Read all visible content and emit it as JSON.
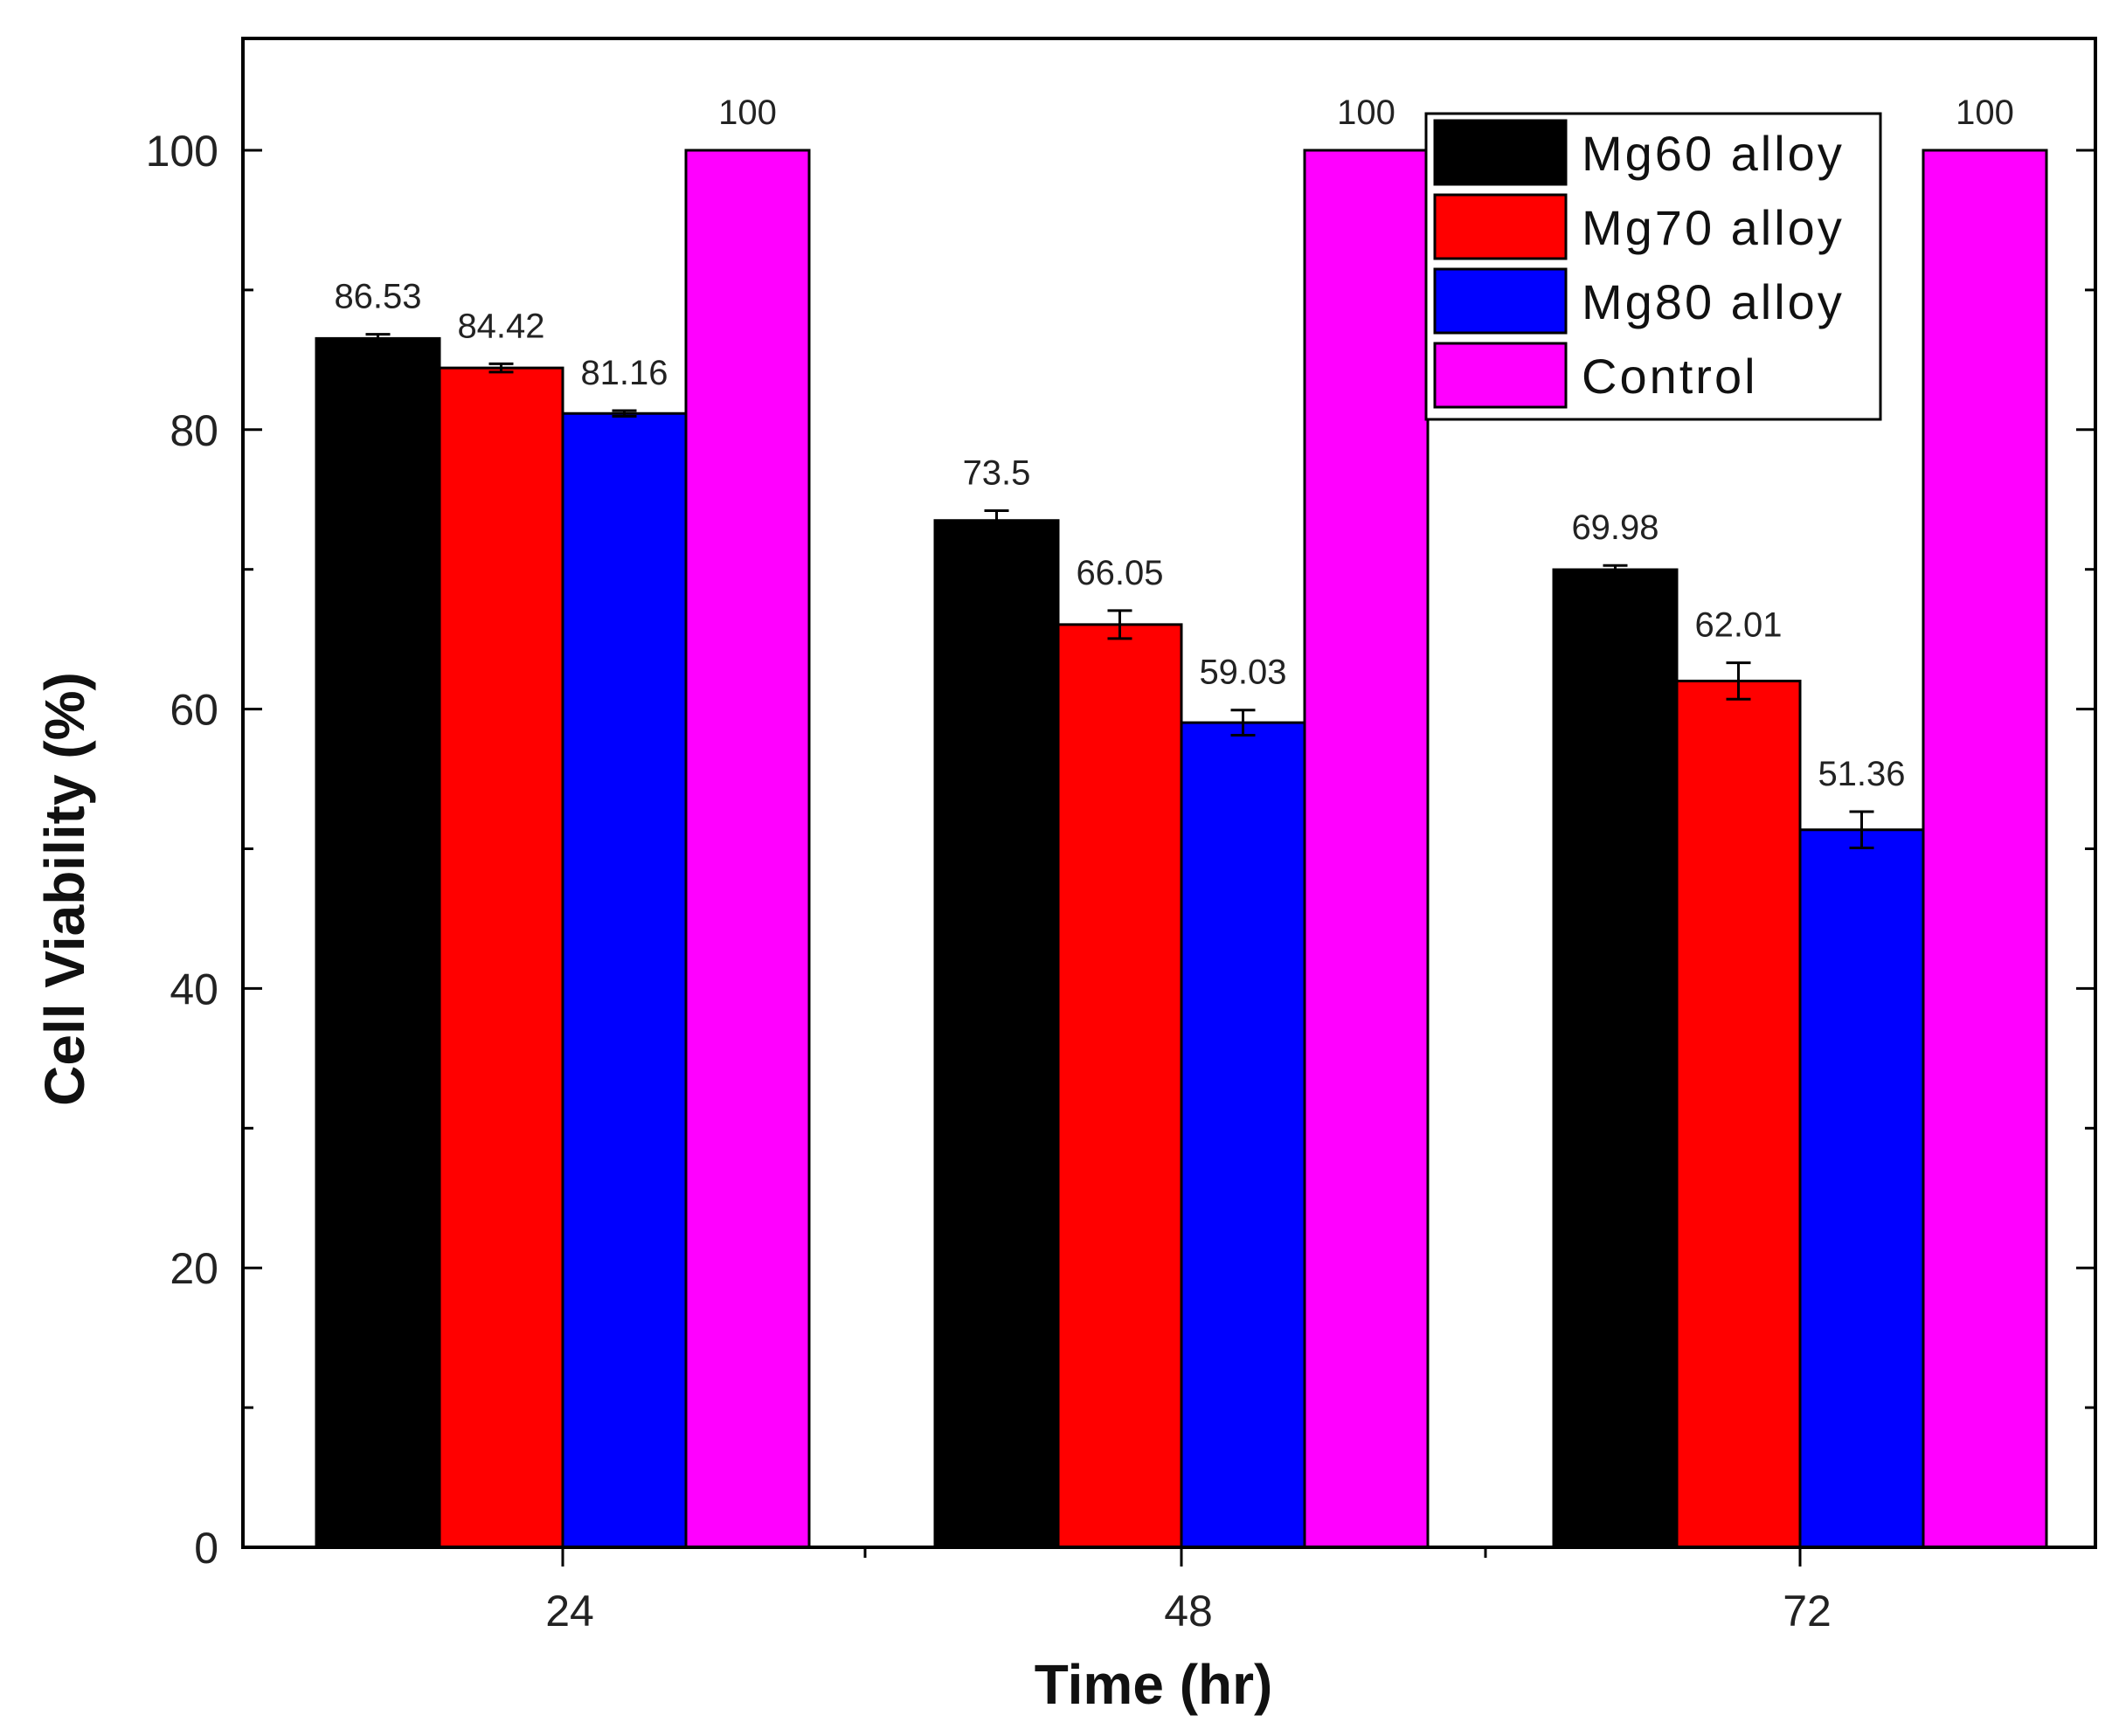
{
  "chart_data": {
    "type": "bar",
    "categories": [
      "24",
      "48",
      "72"
    ],
    "series": [
      {
        "name": "Mg60 alloy",
        "color": "#000000",
        "values": [
          86.53,
          73.5,
          69.98
        ],
        "errors": [
          0.3,
          0.7,
          0.3
        ]
      },
      {
        "name": "Mg70 alloy",
        "color": "#ff0000",
        "values": [
          84.42,
          66.05,
          62.01
        ],
        "errors": [
          0.3,
          1.0,
          1.3
        ]
      },
      {
        "name": "Mg80 alloy",
        "color": "#0000ff",
        "values": [
          81.16,
          59.03,
          51.36
        ],
        "errors": [
          0.2,
          0.9,
          1.3
        ]
      },
      {
        "name": "Control",
        "color": "#ff00ff",
        "values": [
          100,
          100,
          100
        ],
        "errors": [
          0,
          0,
          0
        ]
      }
    ],
    "value_labels": [
      [
        "86.53",
        "73.5",
        "69.98"
      ],
      [
        "84.42",
        "66.05",
        "62.01"
      ],
      [
        "81.16",
        "59.03",
        "51.36"
      ],
      [
        "100",
        "100",
        "100"
      ]
    ],
    "xlabel": "Time (hr)",
    "ylabel": "Cell Viability (%)",
    "ylim": [
      0,
      108
    ],
    "yticks": [
      0,
      20,
      40,
      60,
      80,
      100
    ],
    "yticks_minor": [
      10,
      30,
      50,
      70,
      90
    ],
    "grid": false,
    "legend_position": "top-right"
  }
}
